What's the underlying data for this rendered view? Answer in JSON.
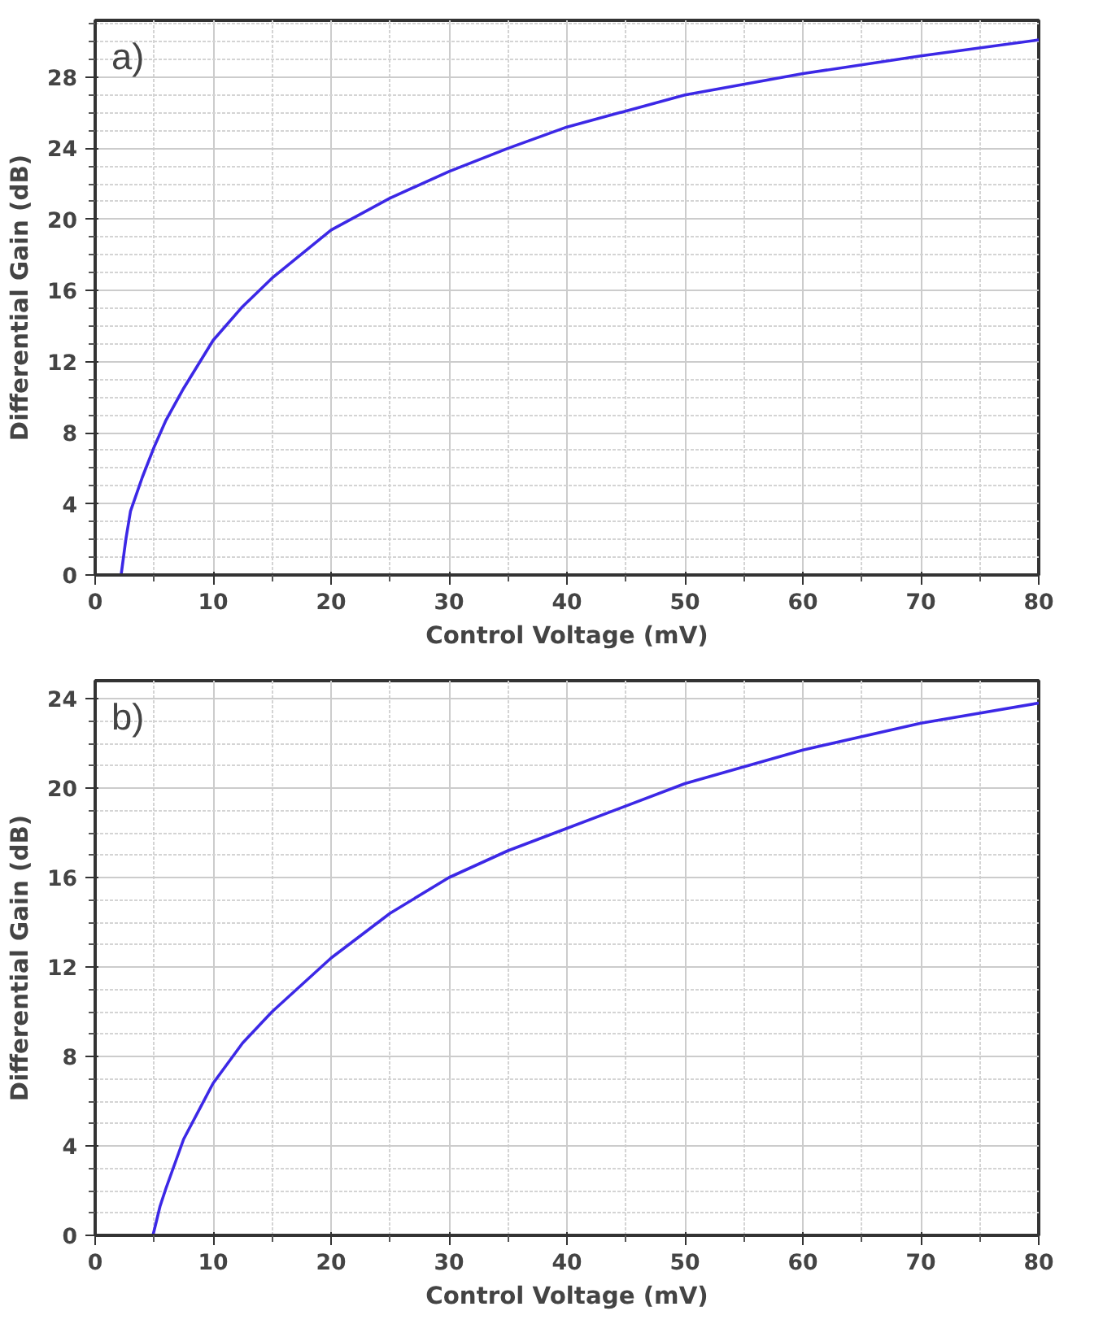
{
  "chart_data": [
    {
      "type": "line",
      "annotations": [
        "a)"
      ],
      "xlabel": "Control Voltage (mV)",
      "ylabel": "Differential Gain (dB)",
      "x": [
        2.2,
        2.6,
        3,
        4,
        5,
        6,
        7.5,
        10,
        12.5,
        15,
        20,
        25,
        30,
        35,
        40,
        50,
        60,
        70,
        80
      ],
      "series": [
        {
          "color": "#3c28e6",
          "values": [
            0,
            2,
            3.6,
            5.5,
            7.2,
            8.7,
            10.5,
            13.2,
            15.1,
            16.7,
            19.4,
            21.2,
            22.7,
            24.0,
            25.2,
            27.0,
            28.2,
            29.2,
            30.1
          ]
        }
      ],
      "xlim": [
        0,
        80
      ],
      "ylim": [
        0,
        31.2
      ],
      "xticks": [
        0,
        {
          "value": 5,
          "label": null
        },
        10,
        {
          "value": 15,
          "label": null
        },
        20,
        {
          "value": 25,
          "label": null
        },
        30,
        {
          "value": 35,
          "label": null
        },
        40,
        {
          "value": 45,
          "label": null
        },
        50,
        {
          "value": 55,
          "label": null
        },
        60,
        {
          "value": 65,
          "label": null
        },
        70,
        {
          "value": 75,
          "label": null
        },
        80
      ],
      "yticks": [
        0,
        {
          "value": 1,
          "label": null
        },
        {
          "value": 2,
          "label": null
        },
        {
          "value": 3,
          "label": null
        },
        4,
        {
          "value": 5,
          "label": null
        },
        {
          "value": 6,
          "label": null
        },
        {
          "value": 7,
          "label": null
        },
        8,
        {
          "value": 9,
          "label": null
        },
        {
          "value": 10,
          "label": null
        },
        {
          "value": 11,
          "label": null
        },
        12,
        {
          "value": 13,
          "label": null
        },
        {
          "value": 14,
          "label": null
        },
        {
          "value": 15,
          "label": null
        },
        16,
        {
          "value": 17,
          "label": null
        },
        {
          "value": 18,
          "label": null
        },
        {
          "value": 19,
          "label": null
        },
        20,
        {
          "value": 21,
          "label": null
        },
        {
          "value": 22,
          "label": null
        },
        {
          "value": 23,
          "label": null
        },
        24,
        {
          "value": 25,
          "label": null
        },
        {
          "value": 26,
          "label": null
        },
        {
          "value": 27,
          "label": null
        },
        28,
        {
          "value": 29,
          "label": null
        },
        {
          "value": 30,
          "label": null
        },
        {
          "value": 31,
          "label": null
        }
      ],
      "grid": true,
      "marker": "none",
      "line_style": "solid"
    },
    {
      "type": "line",
      "annotations": [
        "b)"
      ],
      "xlabel": "Control Voltage (mV)",
      "ylabel": "Differential Gain (dB)",
      "x": [
        4.9,
        5.5,
        6,
        7.5,
        10,
        12.5,
        15,
        20,
        25,
        30,
        35,
        40,
        50,
        60,
        70,
        80
      ],
      "series": [
        {
          "color": "#3c28e6",
          "values": [
            0,
            1.3,
            2.1,
            4.3,
            6.8,
            8.6,
            10.0,
            12.4,
            14.4,
            16.0,
            17.2,
            18.2,
            20.2,
            21.7,
            22.9,
            23.8
          ]
        }
      ],
      "xlim": [
        0,
        80
      ],
      "ylim": [
        0,
        24.8
      ],
      "xticks": [
        0,
        {
          "value": 5,
          "label": null
        },
        10,
        {
          "value": 15,
          "label": null
        },
        20,
        {
          "value": 25,
          "label": null
        },
        30,
        {
          "value": 35,
          "label": null
        },
        40,
        {
          "value": 45,
          "label": null
        },
        50,
        {
          "value": 55,
          "label": null
        },
        60,
        {
          "value": 65,
          "label": null
        },
        70,
        {
          "value": 75,
          "label": null
        },
        80
      ],
      "yticks": [
        0,
        {
          "value": 1,
          "label": null
        },
        {
          "value": 2,
          "label": null
        },
        {
          "value": 3,
          "label": null
        },
        4,
        {
          "value": 5,
          "label": null
        },
        {
          "value": 6,
          "label": null
        },
        {
          "value": 7,
          "label": null
        },
        8,
        {
          "value": 9,
          "label": null
        },
        {
          "value": 10,
          "label": null
        },
        {
          "value": 11,
          "label": null
        },
        12,
        {
          "value": 13,
          "label": null
        },
        {
          "value": 14,
          "label": null
        },
        {
          "value": 15,
          "label": null
        },
        16,
        {
          "value": 17,
          "label": null
        },
        {
          "value": 18,
          "label": null
        },
        {
          "value": 19,
          "label": null
        },
        20,
        {
          "value": 21,
          "label": null
        },
        {
          "value": 22,
          "label": null
        },
        {
          "value": 23,
          "label": null
        },
        24
      ],
      "grid": true,
      "marker": "none",
      "line_style": "solid"
    }
  ]
}
